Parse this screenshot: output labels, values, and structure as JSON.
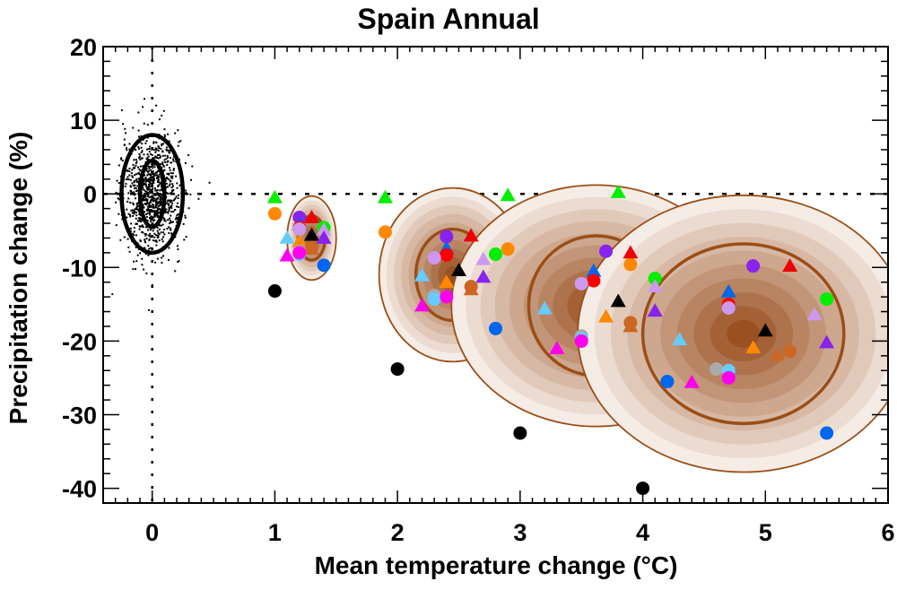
{
  "chart_data": {
    "type": "scatter",
    "title": "Spain Annual",
    "xlabel": "Mean temperature change (°C)",
    "ylabel": "Precipitation change (%)",
    "xlim": [
      -0.4,
      6.0
    ],
    "ylim": [
      -42,
      20
    ],
    "xticks": [
      0,
      1,
      2,
      3,
      4,
      5,
      6
    ],
    "yticks": [
      20,
      10,
      0,
      -10,
      -20,
      -30,
      -40
    ],
    "xtick_labels": [
      "0",
      "1",
      "2",
      "3",
      "4",
      "5",
      "6"
    ],
    "ytick_labels": [
      "20",
      "10",
      "0",
      "-10",
      "-20",
      "-30",
      "-40"
    ],
    "reference_lines": {
      "x": 0,
      "y": 0,
      "style": "dotted"
    },
    "natural_variability": {
      "center": [
        0,
        0
      ],
      "contours": [
        {
          "rx": 0.1,
          "ry": 4.5
        },
        {
          "rx": 0.25,
          "ry": 8.0
        }
      ],
      "scatter_count": 1000
    },
    "distributions": [
      {
        "center": [
          1.3,
          -6.0
        ],
        "inner": {
          "rx": 0.11,
          "ry": 3.0
        },
        "outer": {
          "rx": 0.2,
          "ry": 5.7
        }
      },
      {
        "center": [
          2.45,
          -11.0
        ],
        "inner": {
          "rx": 0.3,
          "ry": 6.2
        },
        "outer": {
          "rx": 0.6,
          "ry": 11.8
        }
      },
      {
        "center": [
          3.62,
          -15.2
        ],
        "inner": {
          "rx": 0.55,
          "ry": 9.5
        },
        "outer": {
          "rx": 1.18,
          "ry": 16.4
        }
      },
      {
        "center": [
          4.82,
          -19.0
        ],
        "inner": {
          "rx": 0.82,
          "ry": 12.2
        },
        "outer": {
          "rx": 1.35,
          "ry": 18.8
        }
      }
    ],
    "series": [
      {
        "name": "black-circle",
        "marker": "circle",
        "color": "#000000",
        "points": [
          [
            1.0,
            -13.2
          ],
          [
            2.0,
            -23.8
          ],
          [
            3.0,
            -32.5
          ],
          [
            4.0,
            -40.0
          ]
        ]
      },
      {
        "name": "green-triangle",
        "marker": "triangle",
        "color": "#00ee00",
        "points": [
          [
            1.0,
            -0.5
          ],
          [
            1.9,
            -0.5
          ],
          [
            2.9,
            -0.2
          ],
          [
            3.8,
            0.2
          ]
        ]
      },
      {
        "name": "orange-circle",
        "marker": "circle",
        "color": "#ff8800",
        "points": [
          [
            1.0,
            -2.7
          ],
          [
            1.9,
            -5.2
          ],
          [
            2.9,
            -7.5
          ],
          [
            3.9,
            -9.6
          ]
        ]
      },
      {
        "name": "purple-circle",
        "marker": "circle",
        "color": "#8822ee",
        "points": [
          [
            1.2,
            -3.2
          ],
          [
            2.4,
            -5.8
          ],
          [
            3.7,
            -7.8
          ],
          [
            4.9,
            -9.8
          ]
        ]
      },
      {
        "name": "red-triangle",
        "marker": "triangle",
        "color": "#ee0000",
        "points": [
          [
            1.3,
            -3.2
          ],
          [
            2.6,
            -5.7
          ],
          [
            3.9,
            -8.0
          ],
          [
            5.2,
            -9.8
          ]
        ]
      },
      {
        "name": "blue-triangle",
        "marker": "triangle",
        "color": "#0066ee",
        "points": [
          [
            1.2,
            -4.2
          ],
          [
            2.4,
            -7.4
          ],
          [
            3.6,
            -10.5
          ],
          [
            4.7,
            -13.3
          ]
        ]
      },
      {
        "name": "red-circle",
        "marker": "circle",
        "color": "#ff0000",
        "points": [
          [
            1.2,
            -4.6
          ],
          [
            2.4,
            -8.3
          ],
          [
            3.6,
            -11.8
          ],
          [
            4.7,
            -15.0
          ]
        ]
      },
      {
        "name": "lavender-circle",
        "marker": "circle",
        "color": "#cc99ee",
        "points": [
          [
            1.2,
            -4.8
          ],
          [
            2.3,
            -8.7
          ],
          [
            3.5,
            -12.2
          ],
          [
            4.7,
            -15.5
          ]
        ]
      },
      {
        "name": "green-circle",
        "marker": "circle",
        "color": "#00ee00",
        "points": [
          [
            1.4,
            -4.6
          ],
          [
            2.8,
            -8.2
          ],
          [
            4.1,
            -11.5
          ],
          [
            5.5,
            -14.3
          ]
        ]
      },
      {
        "name": "lavender-triangle",
        "marker": "triangle",
        "color": "#cc99ee",
        "points": [
          [
            1.4,
            -4.9
          ],
          [
            2.7,
            -8.9
          ],
          [
            4.1,
            -12.6
          ],
          [
            5.4,
            -16.4
          ]
        ]
      },
      {
        "name": "black-triangle",
        "marker": "triangle",
        "color": "#000000",
        "points": [
          [
            1.3,
            -5.6
          ],
          [
            2.5,
            -10.4
          ],
          [
            3.8,
            -14.6
          ],
          [
            5.0,
            -18.6
          ]
        ]
      },
      {
        "name": "purple-triangle",
        "marker": "triangle",
        "color": "#8822ee",
        "points": [
          [
            1.4,
            -6.0
          ],
          [
            2.7,
            -11.3
          ],
          [
            4.1,
            -15.9
          ],
          [
            5.5,
            -20.2
          ]
        ]
      },
      {
        "name": "skyblue-triangle",
        "marker": "triangle",
        "color": "#66ccff",
        "points": [
          [
            1.1,
            -6.0
          ],
          [
            2.2,
            -11.1
          ],
          [
            3.2,
            -15.6
          ],
          [
            4.3,
            -19.8
          ]
        ]
      },
      {
        "name": "orange-triangle",
        "marker": "triangle",
        "color": "#ff8800",
        "points": [
          [
            1.2,
            -6.5
          ],
          [
            2.4,
            -12.0
          ],
          [
            3.7,
            -16.7
          ],
          [
            4.9,
            -20.9
          ]
        ]
      },
      {
        "name": "brown-circle",
        "marker": "circle",
        "color": "#cc6622",
        "points": [
          [
            1.3,
            -7.3
          ],
          [
            2.6,
            -12.6
          ],
          [
            3.9,
            -17.5
          ],
          [
            5.2,
            -21.4
          ]
        ]
      },
      {
        "name": "brown-triangle",
        "marker": "triangle",
        "color": "#cc6622",
        "points": [
          [
            1.3,
            -7.5
          ],
          [
            2.6,
            -13.0
          ],
          [
            3.9,
            -18.0
          ],
          [
            5.1,
            -21.9
          ]
        ]
      },
      {
        "name": "gray-circle",
        "marker": "circle",
        "color": "#aaaaaa",
        "points": [
          [
            1.2,
            -7.8
          ],
          [
            2.3,
            -13.8
          ],
          [
            3.5,
            -19.3
          ],
          [
            4.6,
            -23.8
          ]
        ]
      },
      {
        "name": "skyblue-circle",
        "marker": "circle",
        "color": "#66ccff",
        "points": [
          [
            1.2,
            -8.2
          ],
          [
            2.3,
            -14.3
          ],
          [
            3.5,
            -19.7
          ],
          [
            4.7,
            -24.0
          ]
        ]
      },
      {
        "name": "magenta-circle",
        "marker": "circle",
        "color": "#ff00ee",
        "points": [
          [
            1.2,
            -8.0
          ],
          [
            2.4,
            -14.0
          ],
          [
            3.5,
            -20.0
          ],
          [
            4.7,
            -25.0
          ]
        ]
      },
      {
        "name": "magenta-triangle",
        "marker": "triangle",
        "color": "#ff00ee",
        "points": [
          [
            1.1,
            -8.4
          ],
          [
            2.2,
            -15.2
          ],
          [
            3.3,
            -21.0
          ],
          [
            4.4,
            -25.6
          ]
        ]
      },
      {
        "name": "blue-circle",
        "marker": "circle",
        "color": "#0066ee",
        "points": [
          [
            1.4,
            -9.7
          ],
          [
            2.8,
            -18.3
          ],
          [
            4.2,
            -25.5
          ],
          [
            5.5,
            -32.5
          ]
        ]
      }
    ]
  },
  "colors": {
    "contour": "#9a4e16",
    "shade_light": "#f5ece6",
    "shade_dark": "#9a5020"
  }
}
